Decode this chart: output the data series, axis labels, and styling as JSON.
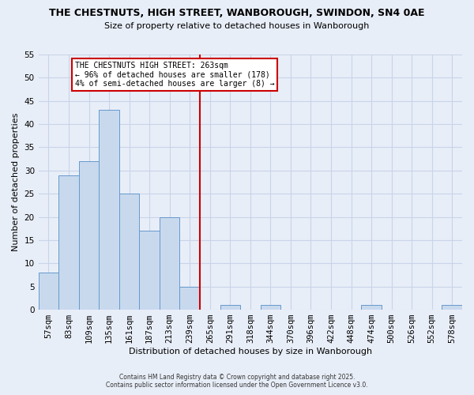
{
  "title": "THE CHESTNUTS, HIGH STREET, WANBOROUGH, SWINDON, SN4 0AE",
  "subtitle": "Size of property relative to detached houses in Wanborough",
  "xlabel": "Distribution of detached houses by size in Wanborough",
  "ylabel": "Number of detached properties",
  "bar_color": "#c8d9ee",
  "bar_edge_color": "#6699cc",
  "grid_color": "#c8d4e8",
  "background_color": "#e8eef8",
  "bin_labels": [
    "57sqm",
    "83sqm",
    "109sqm",
    "135sqm",
    "161sqm",
    "187sqm",
    "213sqm",
    "239sqm",
    "265sqm",
    "291sqm",
    "318sqm",
    "344sqm",
    "370sqm",
    "396sqm",
    "422sqm",
    "448sqm",
    "474sqm",
    "500sqm",
    "526sqm",
    "552sqm",
    "578sqm"
  ],
  "bar_values": [
    8,
    29,
    32,
    43,
    25,
    17,
    20,
    5,
    0,
    1,
    0,
    1,
    0,
    0,
    0,
    0,
    1,
    0,
    0,
    0,
    1
  ],
  "vline_color": "#cc0000",
  "ylim": [
    0,
    55
  ],
  "yticks": [
    0,
    5,
    10,
    15,
    20,
    25,
    30,
    35,
    40,
    45,
    50,
    55
  ],
  "annotation_title": "THE CHESTNUTS HIGH STREET: 263sqm",
  "annotation_line1": "← 96% of detached houses are smaller (178)",
  "annotation_line2": "4% of semi-detached houses are larger (8) →",
  "annotation_box_color": "#cc0000",
  "footnote1": "Contains HM Land Registry data © Crown copyright and database right 2025.",
  "footnote2": "Contains public sector information licensed under the Open Government Licence v3.0."
}
